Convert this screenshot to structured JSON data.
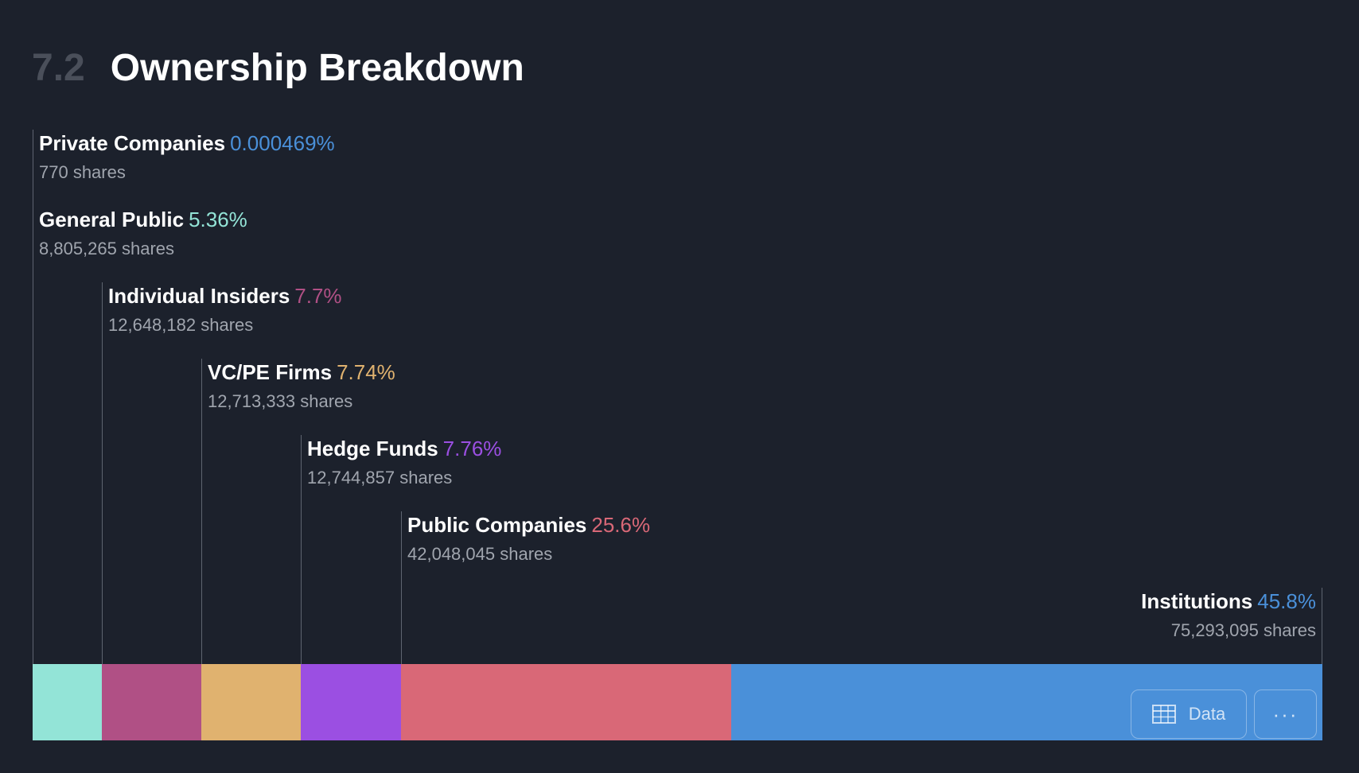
{
  "header": {
    "section_number": "7.2",
    "title": "Ownership Breakdown"
  },
  "chart_data": {
    "type": "bar",
    "orientation": "horizontal-stacked",
    "title": "",
    "unit": "%",
    "series": [
      {
        "name": "Private Companies",
        "value": 0.000469,
        "value_label": "0.000469%",
        "shares": "770 shares",
        "color": "#4a90d9"
      },
      {
        "name": "General Public",
        "value": 5.36,
        "value_label": "5.36%",
        "shares": "8,805,265 shares",
        "color": "#93e4d7"
      },
      {
        "name": "Individual Insiders",
        "value": 7.7,
        "value_label": "7.7%",
        "shares": "12,648,182 shares",
        "color": "#b05085"
      },
      {
        "name": "VC/PE Firms",
        "value": 7.74,
        "value_label": "7.74%",
        "shares": "12,713,333 shares",
        "color": "#e0b26f"
      },
      {
        "name": "Hedge Funds",
        "value": 7.76,
        "value_label": "7.76%",
        "shares": "12,744,857 shares",
        "color": "#9b4fe2"
      },
      {
        "name": "Public Companies",
        "value": 25.6,
        "value_label": "25.6%",
        "shares": "42,048,045 shares",
        "color": "#d96877"
      },
      {
        "name": "Institutions",
        "value": 45.8,
        "value_label": "45.8%",
        "shares": "75,293,095 shares",
        "color": "#4a90d9"
      }
    ]
  },
  "buttons": {
    "data_label": "Data",
    "more_label": "···"
  },
  "icons": {
    "data_icon": "table-icon"
  }
}
